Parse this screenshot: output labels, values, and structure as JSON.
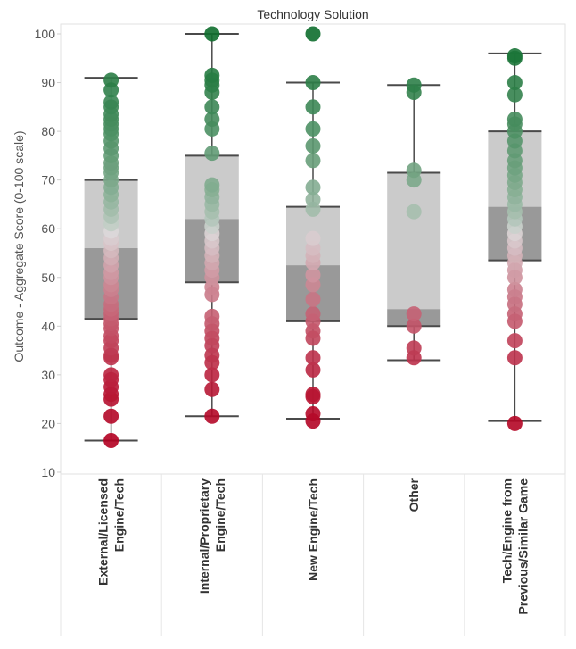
{
  "chart_data": {
    "type": "boxplot",
    "title": "Technology Solution",
    "xlabel": "",
    "ylabel": "Outcome - Aggregate Score (0-100 scale)",
    "ylim": [
      9,
      102
    ],
    "yticks": [
      10,
      20,
      30,
      40,
      50,
      60,
      70,
      80,
      90,
      100
    ],
    "categories": [
      [
        "External/Licensed",
        "Engine/Tech"
      ],
      [
        "Internal/Proprietary",
        "Engine/Tech"
      ],
      [
        "New Engine/Tech"
      ],
      [
        "Other"
      ],
      [
        "Tech/Engine from",
        "Previous/Similar Game"
      ]
    ],
    "color_scale": {
      "low": "#b30021",
      "mid": "#dcdcdc",
      "high": "#0e6e2e"
    },
    "box_colors": {
      "upper": "#cbcbcb",
      "lower": "#999999",
      "whisker": "#4a4a4a"
    },
    "series": [
      {
        "name": "External/Licensed Engine/Tech",
        "min": 16.5,
        "q1": 41.5,
        "median": 56,
        "q3": 70,
        "max": 91,
        "points": [
          16.5,
          21.5,
          25,
          26,
          27.5,
          29,
          30,
          33.5,
          34,
          35.5,
          37,
          38,
          39.5,
          40.5,
          41.5,
          42.5,
          43.5,
          44.5,
          46,
          47.5,
          48.5,
          50,
          51,
          52.5,
          54,
          55.5,
          57,
          58,
          59.5,
          61,
          62.5,
          64,
          65.5,
          67,
          68.5,
          70,
          71.5,
          72.5,
          73.5,
          75,
          76.5,
          78,
          79.5,
          80.5,
          81.5,
          82.5,
          83.5,
          85,
          86,
          88.5,
          90.5
        ]
      },
      {
        "name": "Internal/Proprietary Engine/Tech",
        "min": 21.5,
        "q1": 49,
        "median": 62,
        "q3": 75,
        "max": 100,
        "points": [
          21.5,
          27,
          30,
          32.5,
          34,
          36,
          37.5,
          39,
          40.5,
          42,
          46.5,
          48,
          50,
          51.5,
          53,
          54.5,
          56,
          57.5,
          59,
          60.5,
          62,
          63.5,
          65,
          66.5,
          68,
          69,
          75.5,
          80.5,
          82.5,
          85,
          88,
          89.5,
          90.5,
          91.5,
          100
        ]
      },
      {
        "name": "New Engine/Tech",
        "min": 21,
        "q1": 41,
        "median": 52.5,
        "q3": 64.5,
        "max": 90,
        "points": [
          20.5,
          22,
          25.5,
          26,
          31,
          33.5,
          37.5,
          39,
          41,
          42.5,
          45.5,
          48.5,
          50.5,
          53,
          54.5,
          56,
          58,
          64,
          66,
          68.5,
          74,
          77,
          80.5,
          85,
          90,
          100
        ]
      },
      {
        "name": "Other",
        "min": 33,
        "q1": 40,
        "median": 43.5,
        "q3": 71.5,
        "max": 89.5,
        "points": [
          33.5,
          35.5,
          40,
          42.5,
          63.5,
          70,
          72,
          88,
          89.5
        ]
      },
      {
        "name": "Tech/Engine from Previous/Similar Game",
        "min": 20.5,
        "q1": 53.5,
        "median": 64.5,
        "q3": 80,
        "max": 96,
        "points": [
          20,
          33.5,
          37,
          41,
          42.5,
          44.5,
          46,
          47.5,
          50,
          51.5,
          53,
          54.5,
          56,
          57.5,
          59,
          60.5,
          62,
          63.5,
          65,
          66.5,
          68,
          69.5,
          71,
          72.5,
          74,
          76,
          78,
          80,
          81.5,
          82.5,
          87.5,
          90,
          95,
          95.5
        ]
      }
    ]
  }
}
